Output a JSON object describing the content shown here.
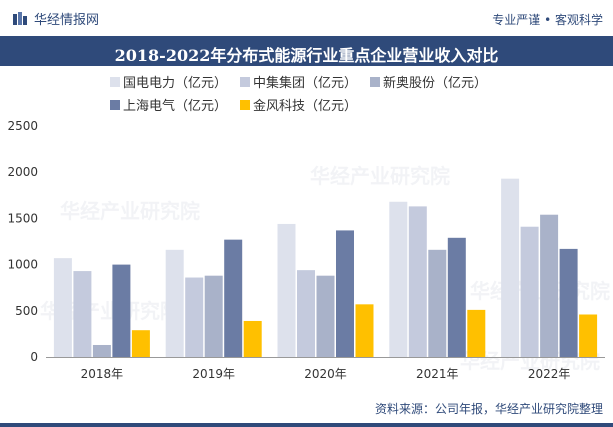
{
  "brand": {
    "name": "华经情报网"
  },
  "slogan": "专业严谨 • 客观科学",
  "source": "资料来源：公司年报，华经产业研究院整理",
  "watermark": "华经产业研究院",
  "chart_data": {
    "type": "bar",
    "title": "2018-2022年分布式能源行业重点企业营业收入对比",
    "categories": [
      "2018年",
      "2019年",
      "2020年",
      "2021年",
      "2022年"
    ],
    "series": [
      {
        "name": "国电电力（亿元）",
        "color": "#dde1ec",
        "values": [
          1070,
          1160,
          1440,
          1680,
          1930
        ]
      },
      {
        "name": "中集集团（亿元）",
        "color": "#c4cadd",
        "values": [
          930,
          860,
          940,
          1630,
          1410
        ]
      },
      {
        "name": "新奥股份（亿元）",
        "color": "#a9b2c9",
        "values": [
          130,
          880,
          880,
          1160,
          1540
        ]
      },
      {
        "name": "上海电气（亿元）",
        "color": "#6b7ca4",
        "values": [
          1000,
          1270,
          1370,
          1290,
          1170
        ]
      },
      {
        "name": "金风科技（亿元）",
        "color": "#ffc000",
        "values": [
          290,
          390,
          570,
          510,
          460
        ]
      }
    ],
    "yticks": [
      0,
      500,
      1000,
      1500,
      2000,
      2500
    ],
    "ylim": [
      0,
      2500
    ],
    "grid": false,
    "legend": "top"
  }
}
